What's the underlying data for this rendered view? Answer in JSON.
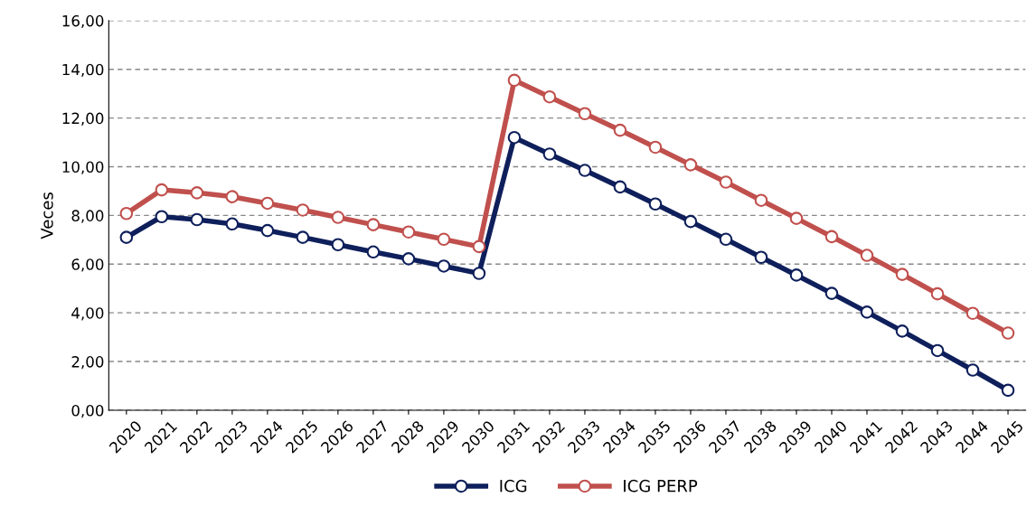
{
  "chart_data": {
    "type": "line",
    "ylabel": "Veces",
    "categories": [
      "2020",
      "2021",
      "2022",
      "2023",
      "2024",
      "2025",
      "2026",
      "2027",
      "2028",
      "2029",
      "2030",
      "2031",
      "2032",
      "2033",
      "2034",
      "2035",
      "2036",
      "2037",
      "2038",
      "2039",
      "2040",
      "2041",
      "2042",
      "2043",
      "2044",
      "2045"
    ],
    "series": [
      {
        "name": "ICG",
        "color": "#0e1f5b",
        "values": [
          7.1,
          7.95,
          7.83,
          7.65,
          7.38,
          7.1,
          6.8,
          6.5,
          6.22,
          5.92,
          5.62,
          11.2,
          10.52,
          9.85,
          9.17,
          8.47,
          7.75,
          7.02,
          6.28,
          5.55,
          4.8,
          4.03,
          3.25,
          2.45,
          1.65,
          0.82
        ]
      },
      {
        "name": "ICG PERP",
        "color": "#c0504d",
        "values": [
          8.08,
          9.05,
          8.93,
          8.77,
          8.5,
          8.22,
          7.92,
          7.62,
          7.32,
          7.02,
          6.72,
          13.55,
          12.87,
          12.18,
          11.5,
          10.8,
          10.08,
          9.37,
          8.62,
          7.88,
          7.13,
          6.36,
          5.58,
          4.78,
          3.98,
          3.17
        ]
      }
    ],
    "ylim": [
      0,
      16
    ],
    "yticks": [
      {
        "value": 0,
        "label": "0,00"
      },
      {
        "value": 2,
        "label": "2,00"
      },
      {
        "value": 4,
        "label": "4,00"
      },
      {
        "value": 6,
        "label": "6,00"
      },
      {
        "value": 8,
        "label": "8,00"
      },
      {
        "value": 10,
        "label": "10,00"
      },
      {
        "value": 12,
        "label": "12,00"
      },
      {
        "value": 14,
        "label": "14,00"
      },
      {
        "value": 16,
        "label": "16,00"
      }
    ],
    "grid": "y",
    "legend": "bottom",
    "marker": "circle",
    "line_style": "solid"
  }
}
